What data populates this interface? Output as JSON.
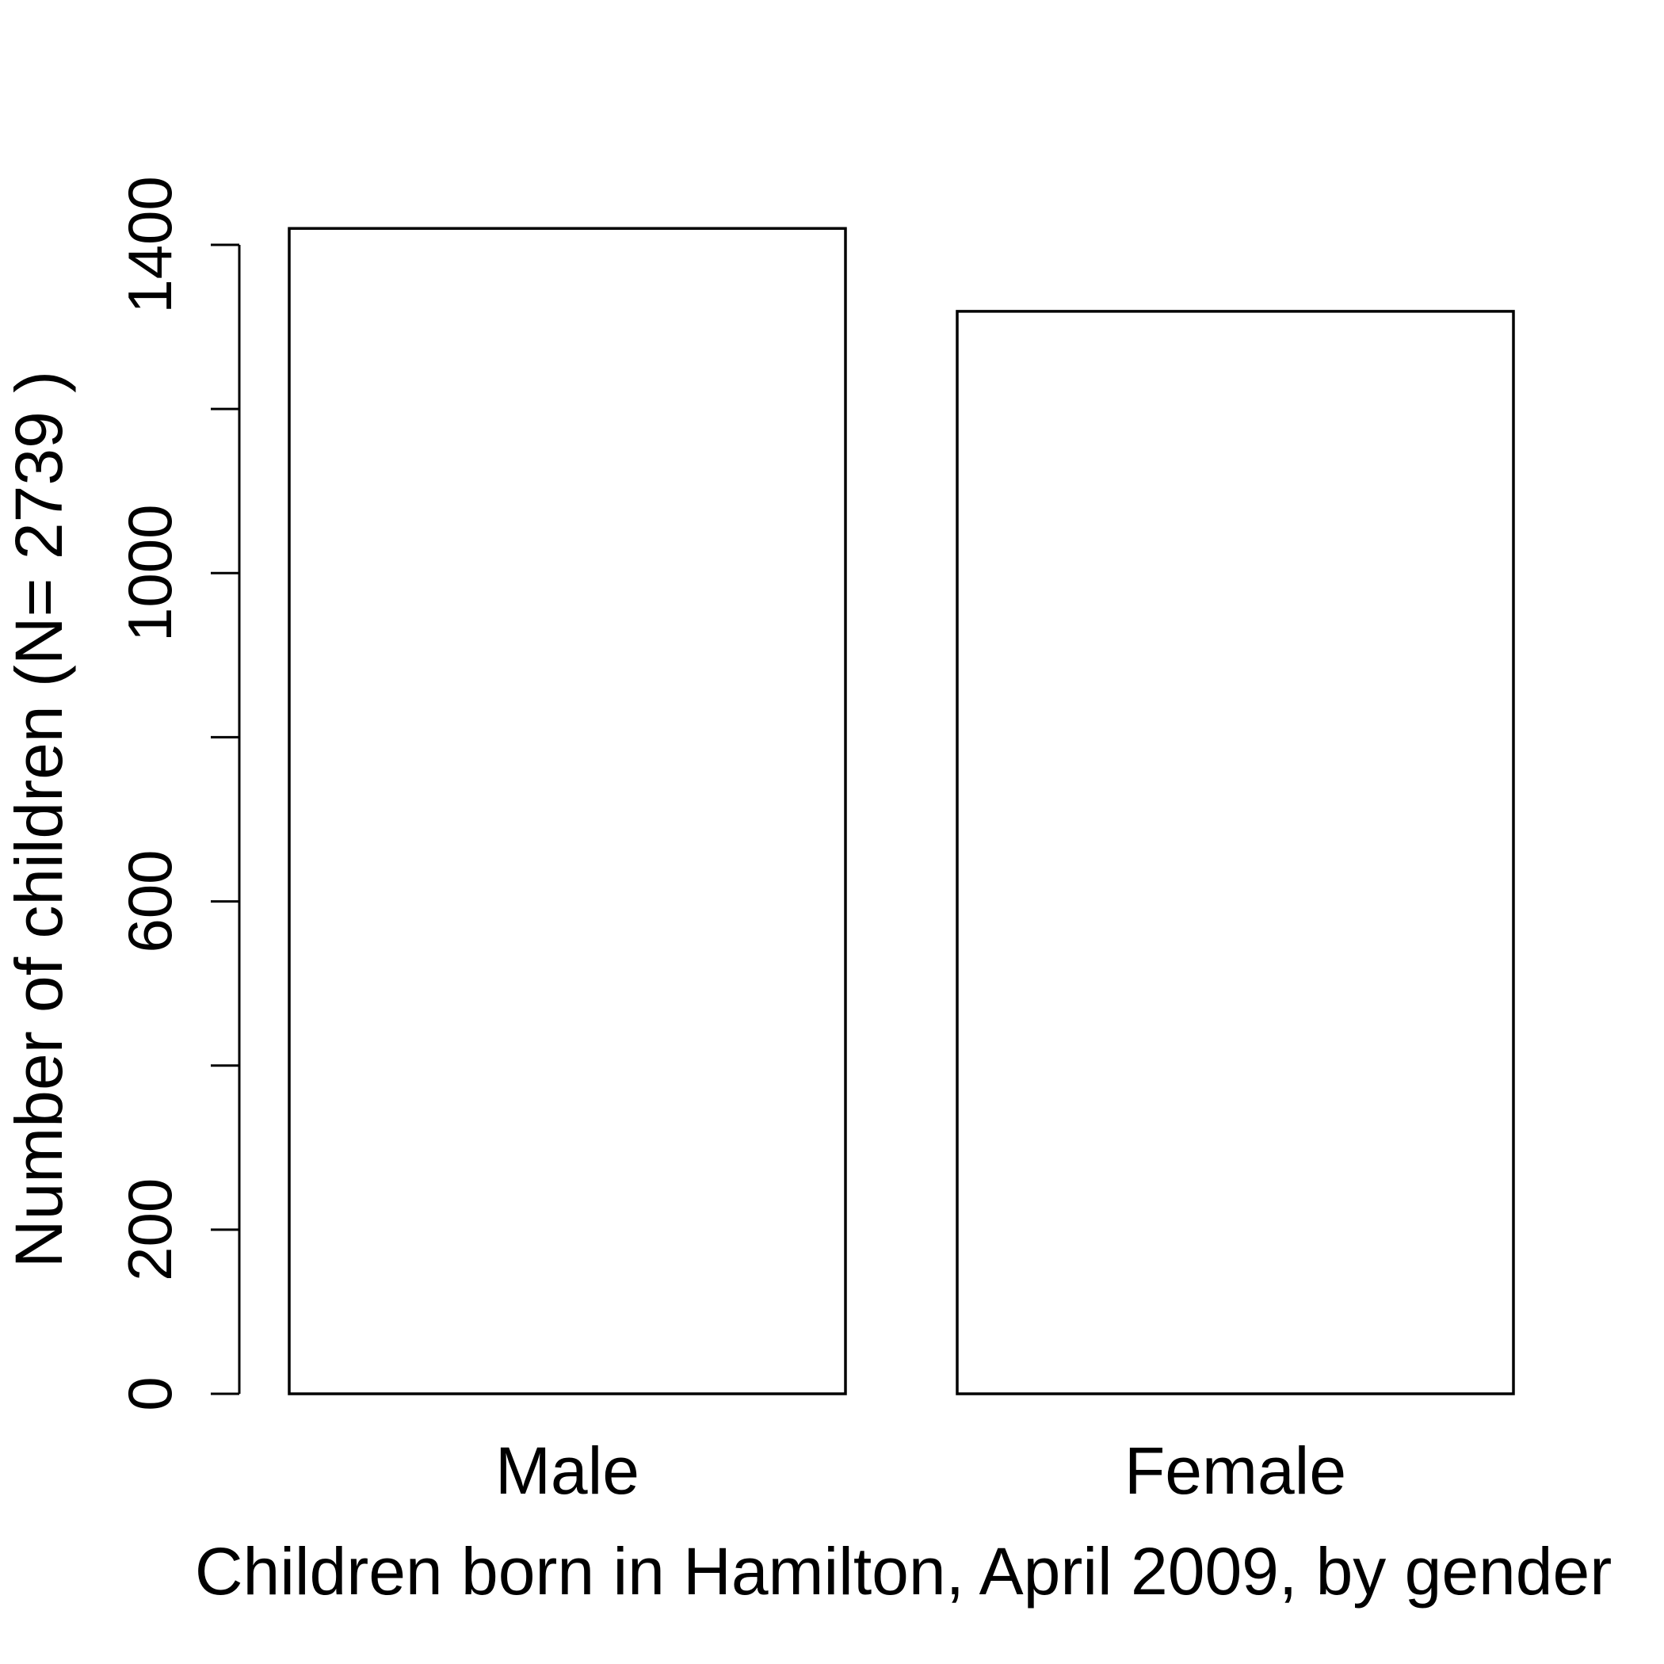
{
  "chart_data": {
    "type": "bar",
    "categories": [
      "Male",
      "Female"
    ],
    "values": [
      1420,
      1319
    ],
    "title": "",
    "xlabel": "Children born in Hamilton, April 2009, by gender",
    "ylabel": "Number of children (N= 2739 )",
    "ylim": [
      0,
      1400
    ],
    "yticks": [
      0,
      200,
      400,
      600,
      800,
      1000,
      1200,
      1400
    ],
    "ytick_labels": [
      "0",
      "200",
      "",
      "600",
      "",
      "1000",
      "",
      "1400"
    ],
    "grid": false,
    "legend": "none",
    "colors": {
      "bar_fill": "#ffffff",
      "bar_stroke": "#000000",
      "axis": "#000000",
      "background": "#ffffff"
    }
  }
}
